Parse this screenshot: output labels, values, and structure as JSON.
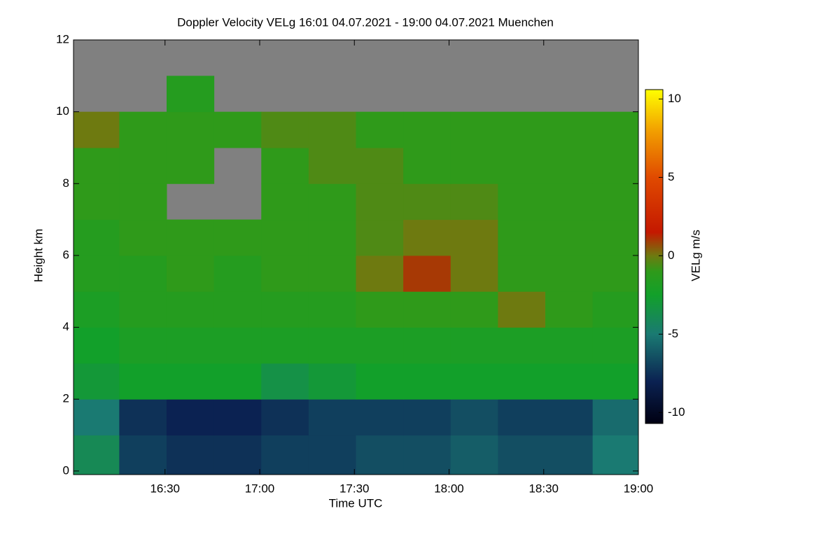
{
  "chart_data": {
    "type": "heatmap",
    "title": "Doppler Velocity VELg   16:01 04.07.2021 - 19:00 04.07.2021 Muenchen",
    "x_label": "Time UTC",
    "y_label": "Height km",
    "colorbar_label": "VELg m/s",
    "xlim": [
      961,
      1140
    ],
    "xticks": [
      {
        "value": 990,
        "label": "16:30"
      },
      {
        "value": 1020,
        "label": "17:00"
      },
      {
        "value": 1050,
        "label": "17:30"
      },
      {
        "value": 1080,
        "label": "18:00"
      },
      {
        "value": 1110,
        "label": "18:30"
      },
      {
        "value": 1140,
        "label": "19:00"
      }
    ],
    "ylim": [
      -0.1,
      12
    ],
    "yticks": [
      0,
      2,
      4,
      6,
      8,
      10,
      12
    ],
    "clim": [
      -10.7,
      10.6
    ],
    "cticks": [
      -10,
      -5,
      0,
      5,
      10
    ],
    "colorscale": [
      [
        -10.7,
        "#000012"
      ],
      [
        -8,
        "#0b2252"
      ],
      [
        -5,
        "#1a7a72"
      ],
      [
        -2.5,
        "#12a02a"
      ],
      [
        -1,
        "#2f9a1a"
      ],
      [
        0,
        "#6e7a10"
      ],
      [
        1.5,
        "#c41800"
      ],
      [
        5,
        "#e04a00"
      ],
      [
        8,
        "#f2a000"
      ],
      [
        10.6,
        "#ffff00"
      ]
    ],
    "missing_color": "#808080",
    "x": [
      968,
      983,
      998,
      1013,
      1028,
      1043,
      1058,
      1073,
      1088,
      1103,
      1118,
      1133
    ],
    "y": [
      0.5,
      1.5,
      2.5,
      3.5,
      4.5,
      5.5,
      6.5,
      7.5,
      8.5,
      9.5,
      10.5,
      11.5
    ],
    "z": [
      [
        -4,
        -7,
        -7.5,
        -7.5,
        -7,
        -7,
        -6.5,
        -6.5,
        -6,
        -6.5,
        -6.5,
        -5
      ],
      [
        -5,
        -7.5,
        -8,
        -8,
        -7.5,
        -7,
        -7,
        -7,
        -6.5,
        -7,
        -7,
        -5.5
      ],
      [
        -3,
        -2.5,
        -2.5,
        -2.5,
        -3.5,
        -3,
        -2.5,
        -2.5,
        -2.5,
        -2.5,
        -2.5,
        -2.5
      ],
      [
        -2.5,
        -2,
        -2,
        -2,
        -2,
        -2,
        -2,
        -2,
        -2,
        -2,
        -2,
        -2
      ],
      [
        -2,
        -1.5,
        -1.5,
        -1.5,
        -1.5,
        -1.5,
        -1,
        -1,
        -1,
        0,
        -1,
        -1.5
      ],
      [
        -1.5,
        -1.5,
        -1,
        -1.5,
        -1,
        -1,
        0,
        1,
        0,
        -1,
        -1,
        -1
      ],
      [
        -1.5,
        -1,
        -1,
        -1,
        -1,
        -1,
        -0.5,
        0,
        0,
        -1,
        -1,
        -1
      ],
      [
        -1,
        -1,
        null,
        null,
        -1,
        -1,
        -0.5,
        -0.5,
        -0.5,
        -1,
        -1,
        -1
      ],
      [
        -1,
        -1,
        -1,
        null,
        -1,
        -0.5,
        -0.5,
        -1,
        -1,
        -1,
        -1,
        -1
      ],
      [
        0,
        -1,
        -1,
        -1,
        -0.5,
        -0.5,
        -1,
        -1,
        -1,
        -1,
        -1,
        -1
      ],
      [
        null,
        null,
        -1.5,
        null,
        null,
        null,
        null,
        null,
        null,
        null,
        null,
        null
      ],
      [
        null,
        null,
        null,
        null,
        null,
        null,
        null,
        null,
        null,
        null,
        null,
        null
      ]
    ]
  }
}
